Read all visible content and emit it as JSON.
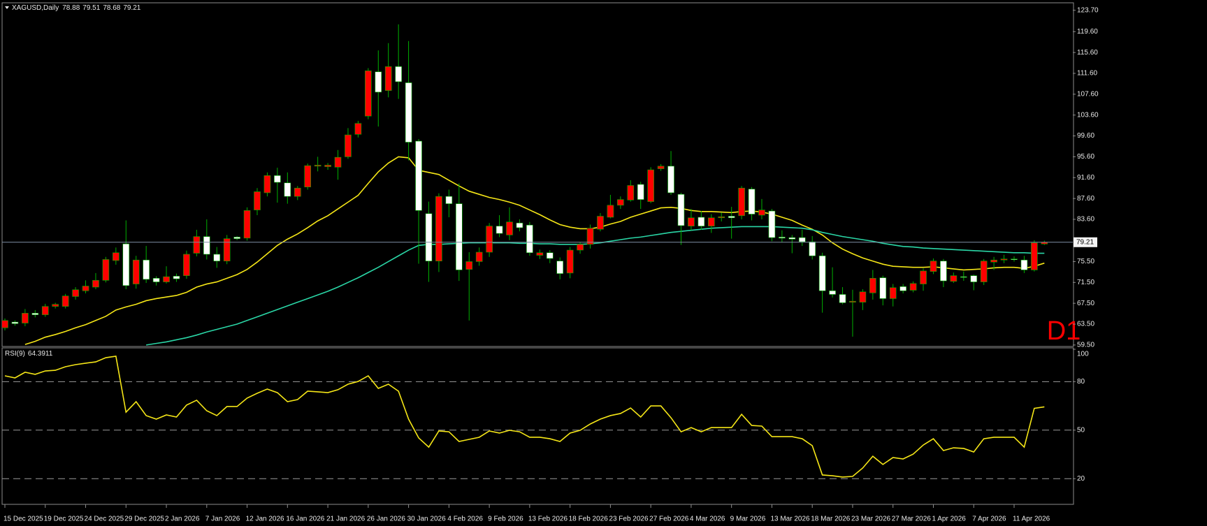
{
  "chart_data": {
    "type": "candlestick",
    "title": "XAGUSD,Daily",
    "annotation": "D1",
    "annotation_color": "#ff0000",
    "categories": [
      "15 Dec 2025",
      null,
      null,
      null,
      "19 Dec 2025",
      null,
      null,
      null,
      "24 Dec 2025",
      null,
      null,
      null,
      "29 Dec 2025",
      null,
      null,
      null,
      "2 Jan 2026",
      null,
      null,
      null,
      "7 Jan 2026",
      null,
      null,
      null,
      "12 Jan 2026",
      null,
      null,
      null,
      "16 Jan 2026",
      null,
      null,
      null,
      "21 Jan 2026",
      null,
      null,
      null,
      "26 Jan 2026",
      null,
      null,
      null,
      "30 Jan 2026",
      null,
      null,
      null,
      "4 Feb 2026",
      null,
      null,
      null,
      "9 Feb 2026",
      null,
      null,
      null,
      "13 Feb 2026",
      null,
      null,
      null,
      "18 Feb 2026",
      null,
      null,
      null,
      "23 Feb 2026",
      null,
      null,
      null,
      "27 Feb 2026",
      null,
      null,
      null,
      "4 Mar 2026",
      null,
      null,
      null,
      "9 Mar 2026",
      null,
      null,
      null,
      "13 Mar 2026",
      null,
      null,
      null,
      "18 Mar 2026",
      null,
      null,
      null,
      "23 Mar 2026",
      null,
      null,
      null,
      "27 Mar 2026",
      null,
      null,
      null,
      "1 Apr 2026",
      null,
      null,
      null,
      "7 Apr 2026",
      null,
      null,
      null,
      "11 Apr 2026",
      null,
      null,
      null
    ],
    "candles": {
      "up_color": "#ff0000",
      "down_color": "#ffffff",
      "wick_color": "#00b000",
      "open": [
        62.8,
        63.9,
        63.7,
        65.6,
        65.3,
        66.9,
        66.9,
        68.8,
        69.9,
        70.6,
        71.9,
        75.7,
        78.9,
        71.2,
        75.8,
        72.3,
        71.6,
        72.7,
        72.8,
        77.1,
        80.3,
        76.9,
        75.6,
        80.2,
        80.0,
        85.4,
        88.7,
        92.0,
        90.6,
        88.0,
        89.8,
        93.8,
        93.7,
        93.6,
        95.6,
        99.9,
        103.4,
        111.9,
        108.3,
        112.9,
        109.8,
        98.6,
        84.7,
        75.6,
        88.0,
        86.6,
        74.0,
        75.5,
        77.3,
        82.3,
        80.6,
        82.9,
        82.5,
        76.7,
        77.2,
        75.6,
        73.3,
        77.7,
        78.8,
        81.7,
        84.0,
        86.3,
        87.3,
        90.3,
        87.0,
        93.3,
        93.8,
        88.4,
        82.3,
        84.0,
        82.3,
        83.9,
        84.2,
        84.3,
        89.4,
        84.4,
        85.2,
        80.2,
        80.1,
        80.1,
        79.3,
        76.6,
        69.9,
        69.2,
        67.7,
        67.7,
        69.5,
        72.4,
        68.4,
        70.7,
        70.0,
        71.2,
        73.6,
        75.6,
        71.7,
        72.6,
        72.8,
        71.6,
        75.4,
        75.8,
        76.0,
        75.8,
        73.9,
        78.88
      ],
      "high": [
        64.6,
        64.2,
        66.4,
        66.2,
        67.4,
        67.6,
        69.3,
        70.6,
        71.9,
        73.3,
        76.4,
        78.2,
        83.4,
        76.6,
        78.5,
        72.7,
        74.6,
        73.2,
        77.6,
        81.6,
        83.6,
        78.3,
        80.6,
        80.4,
        85.9,
        89.6,
        92.6,
        93.5,
        92.6,
        90.0,
        94.3,
        95.6,
        94.4,
        96.9,
        101.1,
        102.5,
        112.6,
        116.0,
        117.4,
        121.0,
        117.8,
        99.0,
        87.0,
        88.6,
        89.3,
        90.5,
        77.3,
        78.2,
        82.9,
        84.4,
        85.9,
        83.6,
        83.1,
        77.8,
        77.7,
        76.3,
        78.3,
        79.2,
        82.6,
        84.8,
        88.3,
        88.0,
        91.1,
        90.8,
        93.6,
        94.2,
        96.7,
        88.7,
        85.6,
        85.2,
        84.6,
        84.9,
        86.0,
        90.0,
        89.8,
        87.5,
        85.6,
        81.5,
        80.6,
        81.6,
        80.4,
        77.2,
        74.4,
        70.6,
        70.1,
        70.2,
        73.9,
        72.8,
        71.2,
        71.2,
        71.7,
        74.2,
        76.1,
        76.0,
        73.4,
        73.6,
        73.0,
        76.0,
        76.4,
        76.8,
        76.5,
        76.6,
        79.6,
        79.51
      ],
      "low": [
        62.3,
        63.2,
        63.1,
        64.8,
        64.9,
        66.5,
        66.5,
        68.2,
        69.4,
        70.2,
        71.5,
        74.9,
        70.2,
        70.3,
        71.4,
        70.9,
        71.3,
        71.6,
        72.2,
        76.5,
        75.9,
        74.3,
        75.0,
        79.6,
        79.5,
        84.4,
        88.0,
        86.8,
        86.6,
        87.3,
        89.3,
        92.8,
        93.1,
        91.2,
        95.2,
        99.3,
        102.8,
        101.4,
        107.0,
        106.7,
        94.9,
        75.1,
        71.6,
        73.5,
        84.0,
        71.8,
        64.2,
        74.7,
        76.4,
        80.2,
        79.6,
        81.3,
        76.6,
        76.0,
        75.2,
        72.1,
        72.3,
        77.0,
        78.0,
        81.3,
        83.8,
        85.6,
        87.0,
        85.6,
        86.7,
        92.9,
        88.3,
        78.7,
        81.5,
        81.6,
        81.0,
        83.2,
        79.9,
        83.6,
        83.4,
        83.6,
        79.4,
        79.2,
        77.1,
        78.5,
        75.9,
        65.7,
        68.6,
        67.3,
        61.1,
        66.2,
        68.2,
        67.1,
        66.9,
        69.4,
        69.6,
        69.9,
        73.1,
        70.6,
        71.4,
        71.8,
        70.0,
        71.0,
        73.9,
        75.2,
        75.5,
        73.3,
        73.6,
        78.68
      ],
      "close": [
        64.2,
        63.6,
        65.6,
        65.3,
        66.9,
        67.3,
        68.9,
        70.1,
        70.8,
        71.9,
        75.9,
        77.2,
        70.9,
        75.8,
        72.1,
        71.6,
        72.6,
        72.2,
        76.9,
        80.3,
        76.9,
        75.6,
        79.9,
        79.9,
        85.3,
        88.9,
        92.0,
        90.7,
        88.0,
        89.6,
        93.9,
        94.0,
        94.0,
        95.5,
        99.8,
        102.0,
        112.1,
        108.0,
        112.9,
        110.0,
        98.4,
        85.3,
        75.6,
        88.0,
        86.6,
        73.9,
        75.5,
        77.3,
        82.3,
        80.9,
        83.1,
        82.0,
        77.2,
        77.2,
        76.1,
        73.2,
        77.7,
        78.8,
        81.9,
        84.2,
        86.3,
        87.4,
        90.1,
        87.4,
        93.1,
        93.8,
        88.7,
        82.4,
        83.9,
        82.3,
        83.9,
        84.1,
        83.9,
        89.6,
        84.6,
        85.4,
        80.1,
        80.0,
        79.8,
        79.3,
        76.6,
        69.9,
        69.2,
        67.6,
        67.9,
        69.7,
        72.3,
        68.4,
        70.5,
        69.9,
        71.3,
        73.7,
        75.6,
        71.8,
        72.8,
        72.5,
        71.6,
        75.6,
        75.8,
        76.0,
        75.9,
        73.9,
        79.1,
        79.21
      ]
    },
    "overlays": [
      {
        "color": "#f5e617",
        "values": [
          null,
          null,
          59.6,
          60.2,
          61.0,
          61.5,
          62.1,
          62.8,
          63.4,
          64.2,
          65.0,
          66.2,
          66.8,
          67.3,
          68.0,
          68.4,
          68.7,
          69.0,
          69.6,
          70.6,
          71.2,
          71.6,
          72.3,
          73.0,
          74.0,
          75.4,
          77.0,
          78.6,
          79.8,
          80.8,
          82.0,
          83.3,
          84.3,
          85.6,
          86.9,
          88.2,
          90.5,
          92.7,
          94.4,
          95.6,
          95.4,
          93.0,
          92.6,
          92.2,
          91.1,
          90.0,
          89.0,
          88.4,
          87.8,
          87.4,
          86.9,
          86.3,
          85.4,
          84.5,
          83.5,
          82.6,
          82.1,
          81.8,
          81.8,
          82.1,
          82.7,
          83.2,
          84.0,
          84.6,
          85.2,
          85.8,
          85.9,
          85.7,
          85.3,
          85.1,
          85.1,
          85.0,
          84.9,
          85.1,
          85.2,
          85.0,
          84.6,
          84.0,
          83.4,
          82.5,
          81.7,
          80.6,
          79.1,
          77.9,
          77.0,
          76.2,
          75.6,
          75.0,
          74.6,
          74.5,
          74.4,
          74.4,
          74.5,
          74.3,
          74.1,
          73.9,
          74.0,
          74.1,
          74.3,
          74.4,
          74.4,
          74.2,
          74.6,
          75.2
        ]
      },
      {
        "color": "#2ad6a6",
        "values": [
          null,
          null,
          null,
          null,
          null,
          null,
          null,
          null,
          null,
          null,
          null,
          null,
          null,
          null,
          59.5,
          59.8,
          60.1,
          60.5,
          60.9,
          61.4,
          62.0,
          62.5,
          63.0,
          63.5,
          64.2,
          64.9,
          65.6,
          66.3,
          67.0,
          67.7,
          68.4,
          69.1,
          69.8,
          70.6,
          71.5,
          72.4,
          73.4,
          74.4,
          75.5,
          76.6,
          77.7,
          78.6,
          78.8,
          78.8,
          78.9,
          79.0,
          79.1,
          79.1,
          79.1,
          79.1,
          79.1,
          79.0,
          79.0,
          78.9,
          78.9,
          78.8,
          78.8,
          78.8,
          78.9,
          79.1,
          79.4,
          79.7,
          80.0,
          80.2,
          80.5,
          80.8,
          81.1,
          81.3,
          81.5,
          81.7,
          81.9,
          82.0,
          82.1,
          82.2,
          82.2,
          82.2,
          82.2,
          82.1,
          82.0,
          81.9,
          81.6,
          81.1,
          80.7,
          80.3,
          80.0,
          79.7,
          79.4,
          79.0,
          78.7,
          78.4,
          78.3,
          78.1,
          78.0,
          77.9,
          77.8,
          77.7,
          77.6,
          77.5,
          77.4,
          77.3,
          77.2,
          77.2,
          77.1,
          77.1
        ]
      }
    ],
    "current_price_color": "#7f8fa6",
    "ylim": [
      59.35,
      125.0
    ],
    "yticks": [
      {
        "value": 123.7,
        "label": "123.70"
      },
      {
        "value": 119.6,
        "label": "119.60"
      },
      {
        "value": 115.6,
        "label": "115.60"
      },
      {
        "value": 111.6,
        "label": "111.60"
      },
      {
        "value": 107.6,
        "label": "107.60"
      },
      {
        "value": 103.6,
        "label": "103.60"
      },
      {
        "value": 99.6,
        "label": "99.60"
      },
      {
        "value": 95.6,
        "label": "95.60"
      },
      {
        "value": 91.6,
        "label": "91.60"
      },
      {
        "value": 87.6,
        "label": "87.60"
      },
      {
        "value": 83.6,
        "label": "83.60"
      },
      {
        "value": 75.5,
        "label": "75.50"
      },
      {
        "value": 71.5,
        "label": "71.50"
      },
      {
        "value": 67.5,
        "label": "67.50"
      },
      {
        "value": 63.5,
        "label": "63.50"
      },
      {
        "value": 59.5,
        "label": "59.50"
      }
    ],
    "indicator": {
      "title": "RSI(9)",
      "color": "#f5e617",
      "ylim": [
        5,
        100
      ],
      "yticks": [
        20,
        50,
        80,
        100
      ],
      "levels": [
        20,
        50,
        80
      ],
      "values": [
        83.6,
        82.3,
        85.8,
        84.5,
        86.6,
        87.0,
        89.2,
        90.5,
        91.4,
        92.2,
        94.8,
        95.7,
        61.1,
        67.6,
        59.0,
        56.8,
        59.4,
        58.1,
        65.5,
        68.5,
        62.0,
        59.0,
        64.6,
        64.6,
        69.8,
        72.8,
        75.4,
        73.2,
        67.6,
        68.9,
        74.1,
        73.7,
        73.2,
        75.0,
        78.4,
        80.1,
        83.6,
        75.8,
        78.4,
        74.1,
        56.8,
        45.2,
        39.5,
        49.5,
        49.0,
        43.0,
        44.3,
        45.6,
        49.5,
        48.2,
        49.9,
        49.0,
        45.6,
        45.6,
        44.7,
        43.0,
        48.2,
        49.9,
        53.8,
        56.8,
        59.0,
        60.3,
        63.7,
        58.1,
        65.0,
        65.0,
        57.7,
        49.0,
        51.6,
        49.0,
        51.6,
        51.6,
        51.6,
        59.8,
        52.9,
        52.5,
        46.0,
        46.0,
        46.0,
        44.7,
        40.4,
        22.3,
        21.8,
        21.0,
        21.4,
        26.6,
        33.9,
        28.8,
        33.1,
        32.2,
        35.2,
        40.8,
        44.7,
        37.4,
        39.1,
        38.7,
        36.5,
        44.7,
        45.6,
        45.6,
        45.6,
        39.5,
        63.5,
        64.3911
      ]
    }
  }
}
